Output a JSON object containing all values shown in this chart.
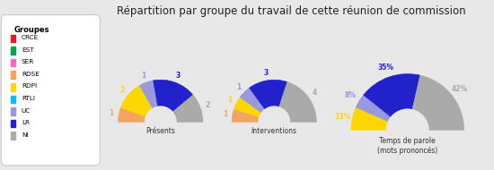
{
  "title": "Répartition par groupe du travail de cette réunion de commission",
  "groups": [
    "CRCE",
    "EST",
    "SER",
    "RDSE",
    "RDPI",
    "RTLI",
    "UC",
    "LR",
    "NI"
  ],
  "colors": [
    "#e31b23",
    "#00a650",
    "#ff69b4",
    "#f4a460",
    "#ffd700",
    "#00bfff",
    "#9999dd",
    "#2222cc",
    "#aaaaaa"
  ],
  "presences": [
    0,
    0,
    0,
    1,
    2,
    0,
    1,
    3,
    2
  ],
  "interventions": [
    0,
    0,
    0,
    1,
    1,
    0,
    1,
    3,
    4
  ],
  "temps_parole": [
    0,
    0,
    0,
    0,
    13,
    0,
    8,
    35,
    42
  ],
  "chart_titles": [
    "Présents",
    "Interventions",
    "Temps de parole\n(mots prononcés)"
  ],
  "background_color": "#e8e8e8",
  "legend_bg": "#ffffff",
  "legend_title": "Groupes",
  "title_fontsize": 8.5,
  "legend_fontsize": 5.5,
  "label_fontsize": 5.5
}
